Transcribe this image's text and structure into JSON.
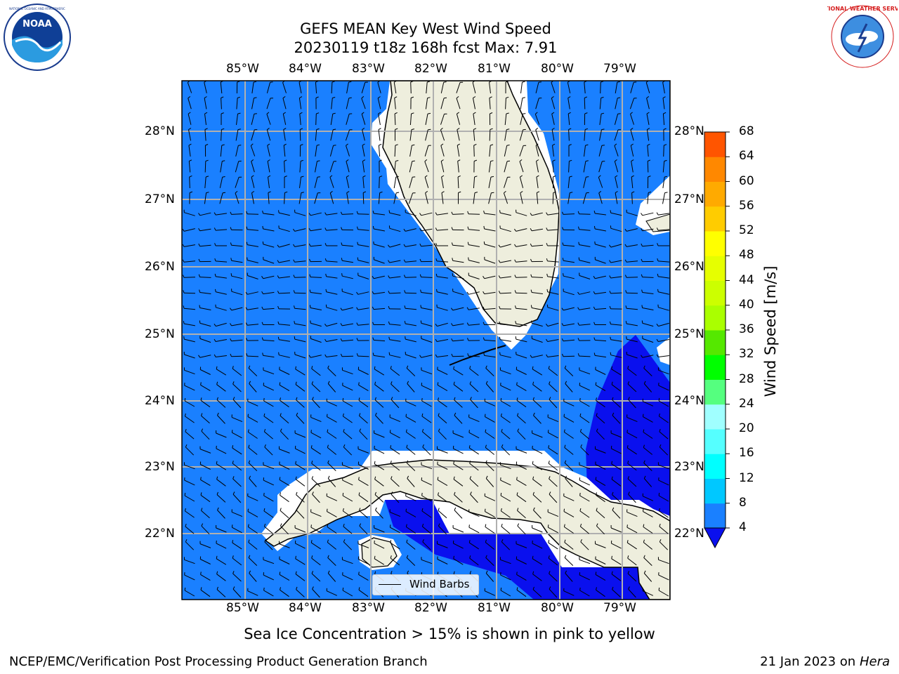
{
  "title": {
    "line1": "GEFS MEAN Key West Wind Speed",
    "line2": "20230119 t18z 168h fcst   Max: 7.91"
  },
  "logos": {
    "left": {
      "name": "NOAA",
      "ring_text": "NATIONAL OCEANIC AND ATMOSPHERIC ADMINISTRATION · U.S. DEPARTMENT OF COMMERCE"
    },
    "right": {
      "ring_text": "NATIONAL WEATHER SERVICE"
    }
  },
  "map": {
    "lon_labels": [
      "85°W",
      "84°W",
      "83°W",
      "82°W",
      "81°W",
      "80°W",
      "79°W"
    ],
    "lat_labels": [
      "28°N",
      "27°N",
      "26°N",
      "25°N",
      "24°N",
      "23°N",
      "22°N"
    ],
    "legend_label": "Wind Barbs",
    "colors": {
      "ocean": "#1a80ff",
      "ocean_dark": "#0a10ee",
      "land": "#eeeedd",
      "grid": "#b0b0b0"
    }
  },
  "colorbar": {
    "label": "Wind Speed [m/s]",
    "ticks": [
      "4",
      "8",
      "12",
      "16",
      "20",
      "24",
      "28",
      "32",
      "36",
      "40",
      "44",
      "48",
      "52",
      "56",
      "60",
      "64",
      "68"
    ],
    "colors": [
      "#1a80ff",
      "#00c8ff",
      "#00ffff",
      "#55ffff",
      "#a0ffff",
      "#55ff7f",
      "#00ff00",
      "#55e800",
      "#aaff00",
      "#ccff00",
      "#e6ff00",
      "#ffff00",
      "#ffcc00",
      "#ffaa00",
      "#ff8800",
      "#ff5500",
      "#ff2200",
      "#ff0000"
    ],
    "under_color": "#0a10ee"
  },
  "footer": {
    "sea_ice": "Sea Ice Concentration > 15% is shown in pink to yellow",
    "left": "NCEP/EMC/Verification Post Processing Product Generation Branch",
    "right_date": "21 Jan 2023 on ",
    "right_host": "Hera"
  }
}
